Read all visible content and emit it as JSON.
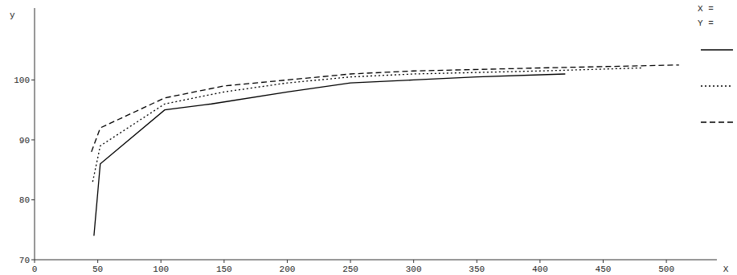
{
  "chart_data": {
    "type": "line",
    "x_label": "X",
    "y_label": "y",
    "annotations": [
      "X =",
      "Y ="
    ],
    "xlim": [
      0,
      540
    ],
    "ylim": [
      70,
      112
    ],
    "xticks": [
      0,
      50,
      100,
      150,
      200,
      250,
      300,
      350,
      400,
      450,
      500
    ],
    "yticks": [
      70,
      80,
      90,
      100
    ],
    "grid": false,
    "series": [
      {
        "color": "#000000",
        "line_style": "solid",
        "x": [
          47,
          52,
          103,
          140,
          200,
          250,
          300,
          350,
          420
        ],
        "values": [
          74,
          86,
          95,
          96,
          98,
          99.5,
          100,
          100.5,
          101
        ]
      },
      {
        "color": "#000000",
        "line_style": "dotted",
        "x": [
          46,
          52,
          103,
          150,
          200,
          250,
          300,
          400,
          480
        ],
        "values": [
          83,
          89,
          96,
          98,
          99.5,
          100.5,
          101,
          101.5,
          102
        ]
      },
      {
        "color": "#000000",
        "line_style": "dashed",
        "x": [
          45,
          52,
          103,
          150,
          200,
          250,
          300,
          400,
          510
        ],
        "values": [
          88,
          92,
          97,
          99,
          100,
          101,
          101.5,
          102,
          102.5
        ]
      }
    ]
  }
}
